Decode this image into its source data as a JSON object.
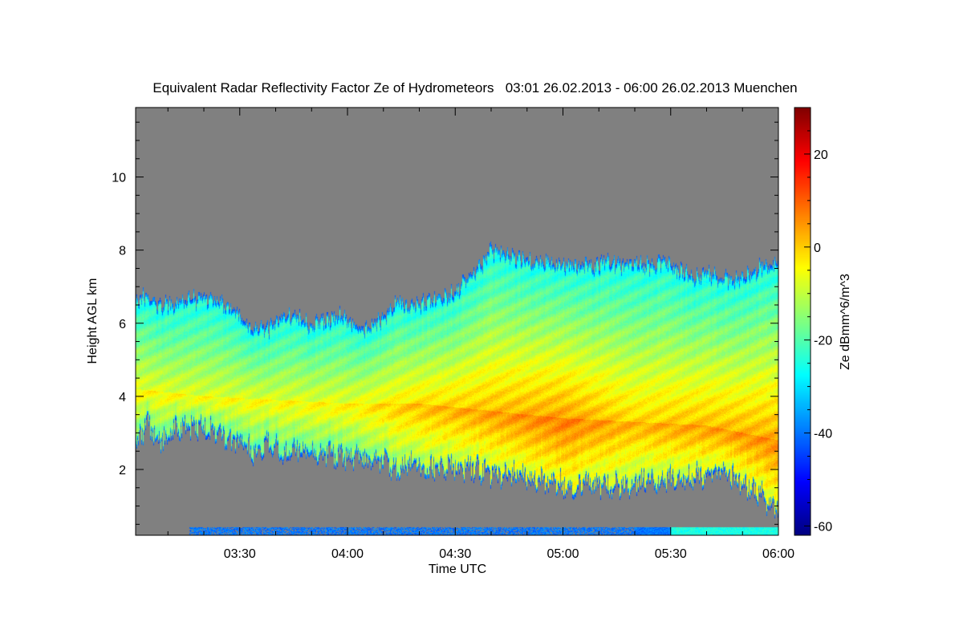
{
  "chart_data": {
    "type": "heatmap",
    "title": "Equivalent Radar Reflectivity Factor Ze of Hydrometeors   03:01 26.02.2013 - 06:00 26.02.2013 Muenchen",
    "xlabel": "Time UTC",
    "ylabel": "Height AGL km",
    "colorbar_label": "Ze dBmm^6/m^3",
    "x_range_minutes_utc": [
      181,
      360
    ],
    "x_ticks": [
      {
        "label": "03:30",
        "minutes": 210
      },
      {
        "label": "04:00",
        "minutes": 240
      },
      {
        "label": "04:30",
        "minutes": 270
      },
      {
        "label": "05:00",
        "minutes": 300
      },
      {
        "label": "05:30",
        "minutes": 330
      },
      {
        "label": "06:00",
        "minutes": 360
      }
    ],
    "y_range_km": [
      0.2,
      11.9
    ],
    "y_ticks": [
      2,
      4,
      6,
      8,
      10
    ],
    "colorbar_range": [
      -62,
      30
    ],
    "colorbar_ticks": [
      -60,
      -40,
      -20,
      0,
      20
    ],
    "colormap": "jet",
    "no_data_color": "#808080",
    "cloud_top_km": [
      [
        181,
        6.6
      ],
      [
        184,
        6.8
      ],
      [
        188,
        6.5
      ],
      [
        192,
        6.6
      ],
      [
        196,
        6.7
      ],
      [
        200,
        6.7
      ],
      [
        204,
        6.6
      ],
      [
        208,
        6.4
      ],
      [
        211,
        6.1
      ],
      [
        214,
        5.9
      ],
      [
        218,
        5.9
      ],
      [
        222,
        6.2
      ],
      [
        226,
        6.2
      ],
      [
        230,
        6.0
      ],
      [
        234,
        6.1
      ],
      [
        238,
        6.3
      ],
      [
        242,
        6.0
      ],
      [
        246,
        5.9
      ],
      [
        250,
        6.2
      ],
      [
        254,
        6.6
      ],
      [
        258,
        6.5
      ],
      [
        262,
        6.6
      ],
      [
        266,
        6.7
      ],
      [
        270,
        6.9
      ],
      [
        274,
        7.3
      ],
      [
        277,
        7.6
      ],
      [
        280,
        8.0
      ],
      [
        284,
        7.9
      ],
      [
        288,
        7.8
      ],
      [
        292,
        7.7
      ],
      [
        296,
        7.7
      ],
      [
        300,
        7.6
      ],
      [
        304,
        7.6
      ],
      [
        308,
        7.6
      ],
      [
        312,
        7.7
      ],
      [
        316,
        7.6
      ],
      [
        320,
        7.7
      ],
      [
        324,
        7.6
      ],
      [
        328,
        7.7
      ],
      [
        332,
        7.5
      ],
      [
        336,
        7.3
      ],
      [
        340,
        7.4
      ],
      [
        344,
        7.3
      ],
      [
        348,
        7.2
      ],
      [
        352,
        7.4
      ],
      [
        356,
        7.6
      ],
      [
        360,
        7.7
      ]
    ],
    "cloud_base_km": [
      [
        181,
        2.6
      ],
      [
        184,
        3.2
      ],
      [
        188,
        2.7
      ],
      [
        192,
        3.0
      ],
      [
        196,
        3.1
      ],
      [
        200,
        3.1
      ],
      [
        204,
        2.9
      ],
      [
        208,
        2.7
      ],
      [
        211,
        2.6
      ],
      [
        214,
        2.4
      ],
      [
        218,
        2.7
      ],
      [
        222,
        2.3
      ],
      [
        226,
        2.6
      ],
      [
        230,
        2.3
      ],
      [
        234,
        2.4
      ],
      [
        238,
        2.3
      ],
      [
        242,
        2.3
      ],
      [
        246,
        2.2
      ],
      [
        250,
        2.2
      ],
      [
        254,
        1.9
      ],
      [
        258,
        2.2
      ],
      [
        262,
        1.9
      ],
      [
        266,
        2.0
      ],
      [
        270,
        2.0
      ],
      [
        274,
        2.0
      ],
      [
        278,
        1.9
      ],
      [
        282,
        1.8
      ],
      [
        286,
        1.8
      ],
      [
        290,
        1.7
      ],
      [
        294,
        1.6
      ],
      [
        298,
        1.6
      ],
      [
        302,
        1.5
      ],
      [
        306,
        1.5
      ],
      [
        310,
        1.5
      ],
      [
        314,
        1.5
      ],
      [
        318,
        1.5
      ],
      [
        322,
        1.6
      ],
      [
        326,
        1.6
      ],
      [
        330,
        1.7
      ],
      [
        334,
        1.7
      ],
      [
        338,
        1.8
      ],
      [
        342,
        1.8
      ],
      [
        346,
        1.8
      ],
      [
        350,
        1.6
      ],
      [
        354,
        1.3
      ],
      [
        358,
        1.0
      ],
      [
        360,
        0.8
      ]
    ],
    "core_height_km": [
      [
        181,
        4.2
      ],
      [
        200,
        4.0
      ],
      [
        220,
        3.9
      ],
      [
        240,
        3.8
      ],
      [
        260,
        3.8
      ],
      [
        280,
        3.6
      ],
      [
        300,
        3.4
      ],
      [
        320,
        3.3
      ],
      [
        340,
        3.2
      ],
      [
        360,
        2.8
      ]
    ],
    "core_peak_dbz": [
      [
        181,
        -3
      ],
      [
        200,
        -4
      ],
      [
        220,
        -4
      ],
      [
        240,
        -3
      ],
      [
        260,
        2
      ],
      [
        280,
        5
      ],
      [
        300,
        8
      ],
      [
        320,
        3
      ],
      [
        340,
        5
      ],
      [
        360,
        7
      ]
    ]
  }
}
